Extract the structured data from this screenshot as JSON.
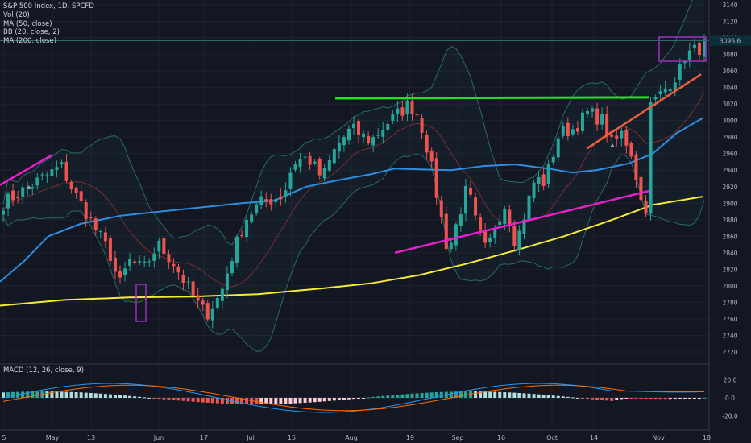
{
  "legend": {
    "title": "S&P 500 Index, 1D, SPCFD",
    "vol": "Vol (20)",
    "ma50": "MA (50, close)",
    "bb": "BB (20, close, 2)",
    "ma200": "MA (200, close)"
  },
  "macd_legend": "MACD (12, 26, close, 9)",
  "colors": {
    "background": "#131722",
    "up": "#26a69a",
    "down": "#ef5350",
    "ma50": "#2e8de0",
    "ma200": "#f5eb3b",
    "bb": "#2a6b63",
    "trend_green": "#22e01f",
    "trend_magenta": "#e91ecd",
    "trend_orange": "#ef5d3c",
    "box": "#9b2fbf",
    "macd_line": "#2196f3",
    "signal_line": "#ff6d00"
  },
  "chart_data": {
    "type": "candlestick",
    "title": "S&P 500 Index, 1D, SPCFD",
    "y_axis": {
      "ticks": [
        2720,
        2740,
        2760,
        2780,
        2800,
        2820,
        2840,
        2860,
        2880,
        2900,
        2920,
        2940,
        2960,
        2980,
        3000,
        3020,
        3040,
        3060,
        3080,
        3100,
        3120,
        3140
      ],
      "ylim": [
        2710,
        3145
      ],
      "last_price": "3096.6",
      "last_price_value": 3096.6
    },
    "x_axis": {
      "ticks": [
        "5",
        "May",
        "13",
        "Jun",
        "17",
        "Jul",
        "15",
        "Aug",
        "19",
        "Sep",
        "16",
        "Oct",
        "14",
        "Nov",
        "18"
      ]
    },
    "macd": {
      "ticks": [
        "20.0",
        "0.0",
        "-20.0"
      ],
      "ylim": [
        -28,
        34
      ]
    },
    "annotations": {
      "green_resistance": 3027,
      "boxes": [
        "late-May low",
        "November high"
      ]
    }
  }
}
